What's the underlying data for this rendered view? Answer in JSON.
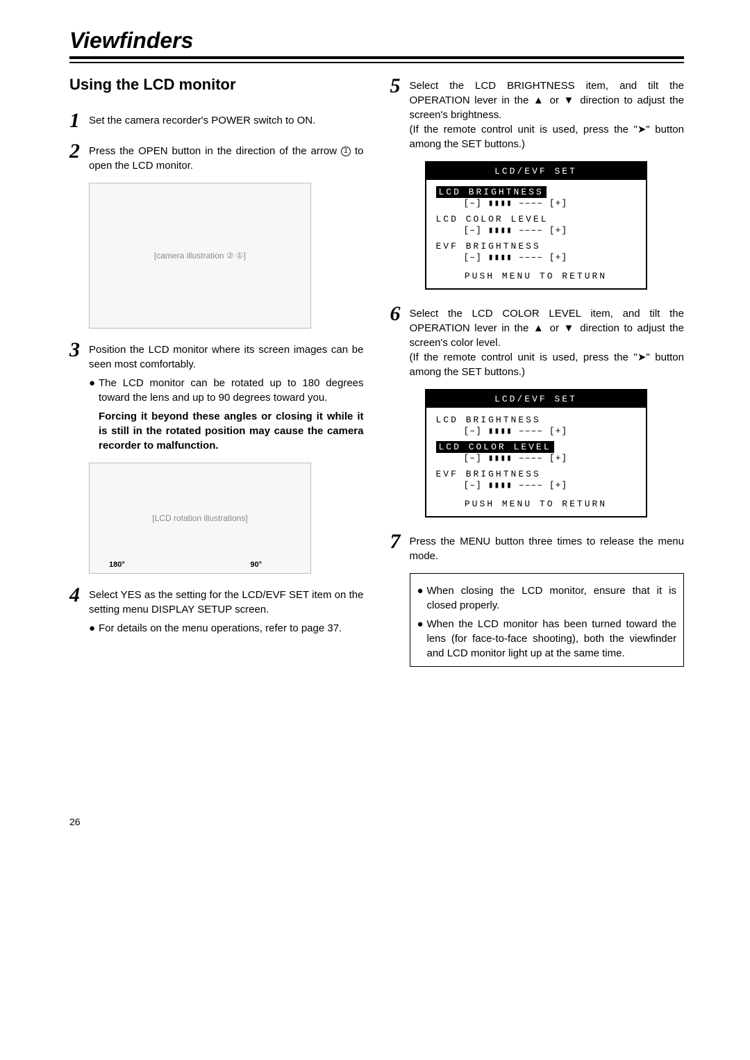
{
  "title": "Viewfinders",
  "section": "Using the LCD monitor",
  "page_number": "26",
  "steps": {
    "s1": "Set the camera recorder's POWER switch to ON.",
    "s2a": "Press the OPEN button in the direction of the arrow ",
    "s2b": " to open the LCD monitor.",
    "s3": "Position the LCD monitor where its screen images can be seen most comfortably.",
    "s3_b1": "The LCD monitor can be rotated up to 180 degrees toward the lens and up to 90 degrees toward you.",
    "s3_b2": "Forcing it beyond these angles or closing it while it is still in the rotated position may cause the camera recorder to malfunction.",
    "s4": "Select YES as the setting for the LCD/EVF SET item on the setting menu DISPLAY SETUP screen.",
    "s4_b1": "For details on the menu operations, refer to page 37.",
    "s5a": "Select the LCD BRIGHTNESS item, and tilt the OPERATION lever in the ",
    "s5b": " or ",
    "s5c": " direction to adjust the screen's brightness.",
    "s5d": "(If the remote control unit is used, press the \"",
    "s5e": "\" button among the SET buttons.)",
    "s6a": "Select the LCD COLOR LEVEL item, and tilt the OPERATION lever in the ",
    "s6b": " or ",
    "s6c": " direction to adjust the screen's color level.",
    "s6d": "(If the remote control unit is used, press the \"",
    "s6e": "\" button among the SET buttons.)",
    "s7": "Press the MENU button three times to release the menu mode."
  },
  "notes": {
    "n1": "When closing the LCD monitor, ensure that it is closed properly.",
    "n2": "When the LCD monitor has been turned toward the lens (for face-to-face shooting), both the viewfinder and LCD monitor light up at the same time."
  },
  "menu": {
    "header": "LCD/EVF SET",
    "item1": "LCD BRIGHTNESS",
    "item2": "LCD COLOR LEVEL",
    "item3": "EVF BRIGHTNESS",
    "slider": "[–] ▮▮▮▮ –––– [+]",
    "footer": "PUSH MENU TO RETURN"
  },
  "fig": {
    "cam1": "[camera illustration ② ①]",
    "cam2": "[LCD rotation illustrations]",
    "label_180": "180°",
    "label_90": "90°"
  }
}
